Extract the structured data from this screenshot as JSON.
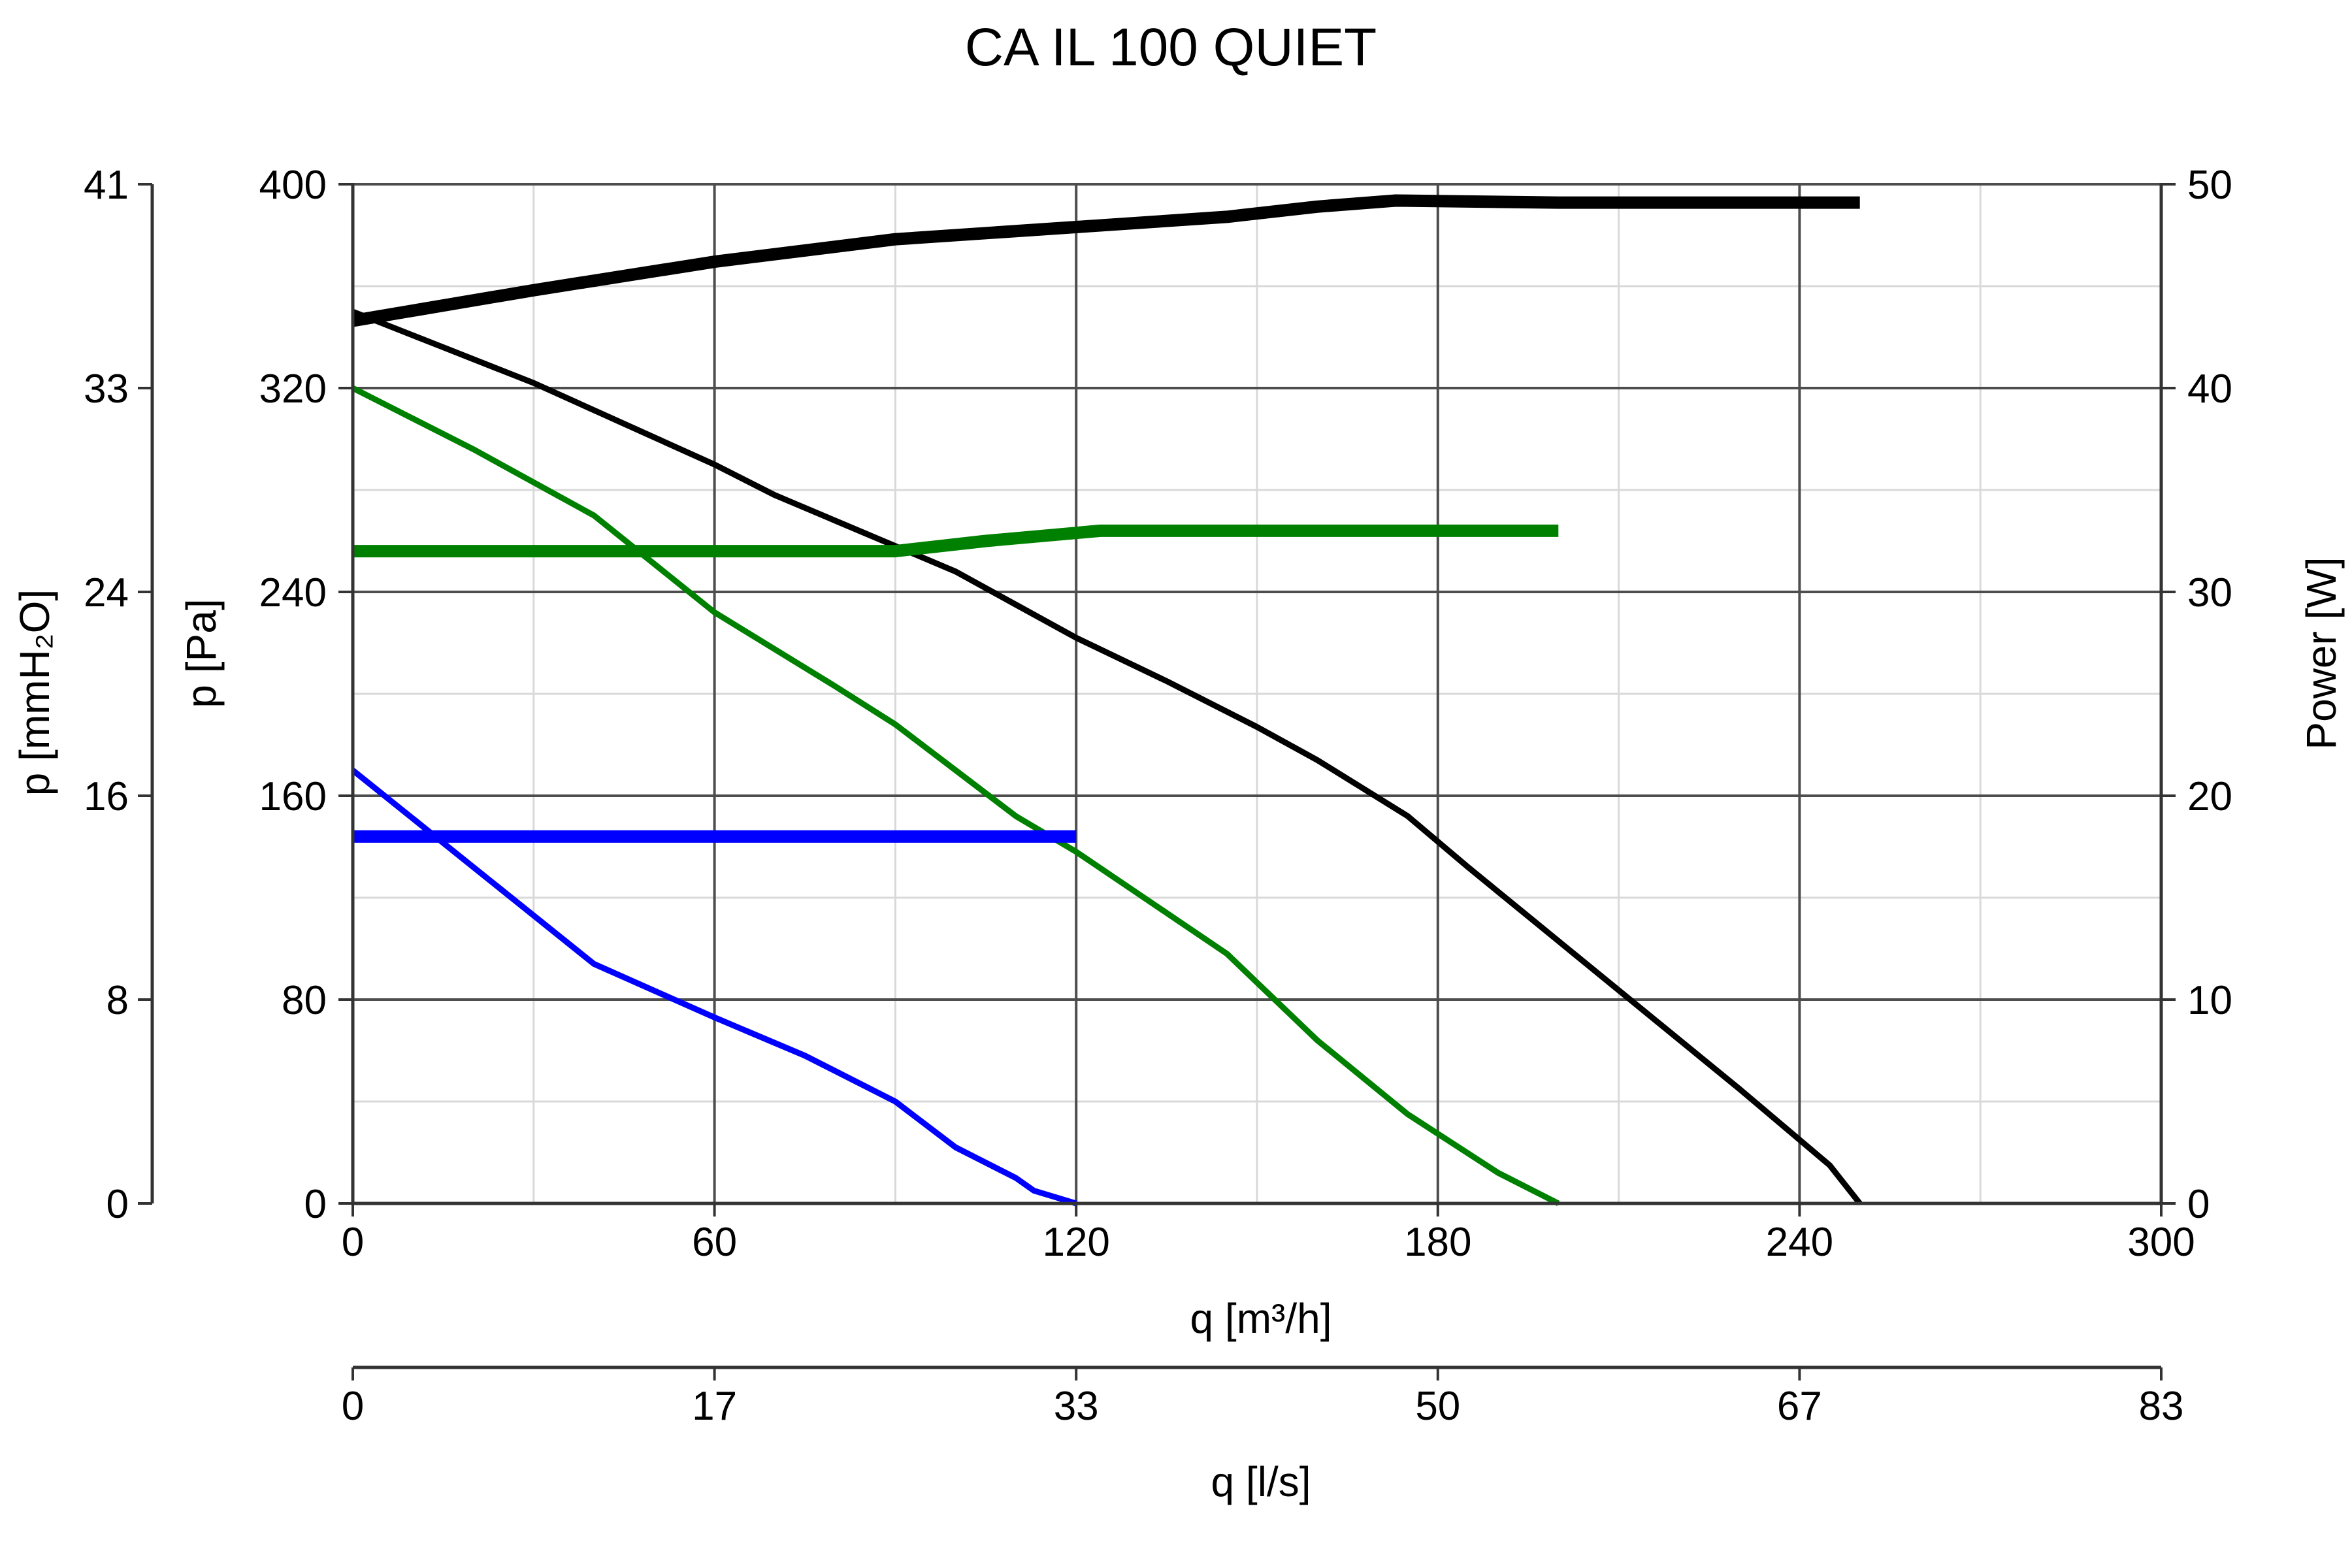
{
  "chart_data": {
    "type": "line",
    "title": "CA IL 100 QUIET",
    "x": {
      "label": "q [m³/h]",
      "min": 0,
      "max": 300,
      "ticks": [
        0,
        60,
        120,
        180,
        240,
        300
      ]
    },
    "x2": {
      "label": "q [l/s]",
      "ticks": [
        0,
        17,
        33,
        50,
        67,
        83
      ]
    },
    "y_left_outer": {
      "label": "p [mmH₂O]",
      "ticks": [
        0,
        8,
        16,
        24,
        33,
        41
      ]
    },
    "y_left": {
      "label": "p [Pa]",
      "min": 0,
      "max": 400,
      "ticks": [
        0,
        80,
        160,
        240,
        320,
        400
      ]
    },
    "y_right": {
      "label": "Power [W]",
      "min": 0,
      "max": 50,
      "ticks": [
        0,
        10,
        20,
        30,
        40,
        50
      ]
    },
    "grid": true,
    "series": [
      {
        "color": "#000000",
        "width": "thin",
        "axis": "pressure",
        "points": [
          [
            0,
            350
          ],
          [
            15,
            336
          ],
          [
            30,
            322
          ],
          [
            45,
            306
          ],
          [
            60,
            290
          ],
          [
            70,
            278
          ],
          [
            80,
            268
          ],
          [
            90,
            258
          ],
          [
            100,
            248
          ],
          [
            110,
            235
          ],
          [
            120,
            222
          ],
          [
            135,
            205
          ],
          [
            150,
            187
          ],
          [
            160,
            174
          ],
          [
            175,
            152
          ],
          [
            185,
            132
          ],
          [
            200,
            103
          ],
          [
            215,
            74
          ],
          [
            230,
            45
          ],
          [
            245,
            15
          ],
          [
            250,
            0
          ]
        ]
      },
      {
        "color": "#008000",
        "width": "thin",
        "axis": "pressure",
        "points": [
          [
            0,
            320
          ],
          [
            20,
            296
          ],
          [
            40,
            270
          ],
          [
            60,
            232
          ],
          [
            80,
            203
          ],
          [
            90,
            188
          ],
          [
            100,
            170
          ],
          [
            110,
            152
          ],
          [
            120,
            138
          ],
          [
            130,
            122
          ],
          [
            145,
            98
          ],
          [
            160,
            64
          ],
          [
            175,
            35
          ],
          [
            190,
            12
          ],
          [
            200,
            0
          ]
        ]
      },
      {
        "color": "#0000ff",
        "width": "thin",
        "axis": "pressure",
        "points": [
          [
            0,
            170
          ],
          [
            20,
            132
          ],
          [
            40,
            94
          ],
          [
            60,
            73
          ],
          [
            75,
            58
          ],
          [
            90,
            40
          ],
          [
            100,
            22
          ],
          [
            110,
            10
          ],
          [
            113,
            5
          ],
          [
            120,
            0
          ]
        ]
      },
      {
        "color": "#000000",
        "width": "thick",
        "axis": "power",
        "points": [
          [
            0,
            43.3
          ],
          [
            30,
            44.8
          ],
          [
            60,
            46.2
          ],
          [
            90,
            47.3
          ],
          [
            120,
            47.9
          ],
          [
            145,
            48.4
          ],
          [
            160,
            48.9
          ],
          [
            173,
            49.2
          ],
          [
            200,
            49.1
          ],
          [
            250,
            49.1
          ]
        ]
      },
      {
        "color": "#008000",
        "width": "thick",
        "axis": "power",
        "points": [
          [
            0,
            32
          ],
          [
            30,
            32
          ],
          [
            60,
            32
          ],
          [
            90,
            32
          ],
          [
            105,
            32.5
          ],
          [
            124,
            33
          ],
          [
            160,
            33
          ],
          [
            200,
            33
          ]
        ]
      },
      {
        "color": "#0000ff",
        "width": "thick",
        "axis": "power",
        "points": [
          [
            0,
            18
          ],
          [
            60,
            18
          ],
          [
            120,
            18
          ]
        ]
      }
    ]
  }
}
